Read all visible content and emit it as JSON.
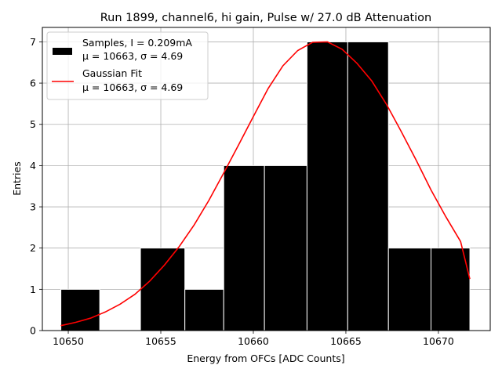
{
  "chart_data": {
    "type": "bar",
    "title": "Run 1899, channel6, hi gain, Pulse w/ 27.0 dB Attenuation",
    "xlabel": "Energy from OFCs [ADC Counts]",
    "ylabel": "Entries",
    "xlim": [
      10648.6,
      10672.8
    ],
    "ylim": [
      0,
      7.35
    ],
    "xticks": [
      10650,
      10655,
      10660,
      10665,
      10670
    ],
    "yticks": [
      0,
      1,
      2,
      3,
      4,
      5,
      6,
      7
    ],
    "grid": true,
    "legend_position": "top-left",
    "histogram": {
      "name": "Samples, I = 0.209mA",
      "stats": "μ = 10663, σ = 4.69",
      "color": "#000000",
      "bins": [
        {
          "start": 10649.6,
          "end": 10651.7,
          "count": 1
        },
        {
          "start": 10651.7,
          "end": 10653.9,
          "count": 0
        },
        {
          "start": 10653.9,
          "end": 10656.3,
          "count": 2
        },
        {
          "start": 10656.3,
          "end": 10658.4,
          "count": 1
        },
        {
          "start": 10658.4,
          "end": 10660.6,
          "count": 4
        },
        {
          "start": 10660.6,
          "end": 10662.9,
          "count": 4
        },
        {
          "start": 10662.9,
          "end": 10665.1,
          "count": 7
        },
        {
          "start": 10665.1,
          "end": 10667.3,
          "count": 7
        },
        {
          "start": 10667.3,
          "end": 10669.6,
          "count": 2
        },
        {
          "start": 10669.6,
          "end": 10671.7,
          "count": 2
        }
      ]
    },
    "fit": {
      "name": "Gaussian Fit",
      "stats": "μ = 10663, σ = 4.69",
      "color": "#ff0000",
      "x": [
        10649.6,
        10650.4,
        10651.2,
        10652.0,
        10652.8,
        10653.6,
        10654.4,
        10655.2,
        10656.0,
        10656.8,
        10657.6,
        10658.4,
        10659.2,
        10660.0,
        10660.8,
        10661.6,
        10662.4,
        10663.2,
        10664.0,
        10664.8,
        10665.6,
        10666.4,
        10667.2,
        10668.0,
        10668.8,
        10669.6,
        10670.4,
        10671.2,
        10671.7
      ],
      "y": [
        0.12,
        0.2,
        0.3,
        0.45,
        0.64,
        0.88,
        1.2,
        1.59,
        2.04,
        2.56,
        3.16,
        3.82,
        4.5,
        5.19,
        5.87,
        6.42,
        6.79,
        6.99,
        7.0,
        6.82,
        6.48,
        6.05,
        5.48,
        4.82,
        4.13,
        3.41,
        2.76,
        2.16,
        1.25
      ]
    }
  }
}
